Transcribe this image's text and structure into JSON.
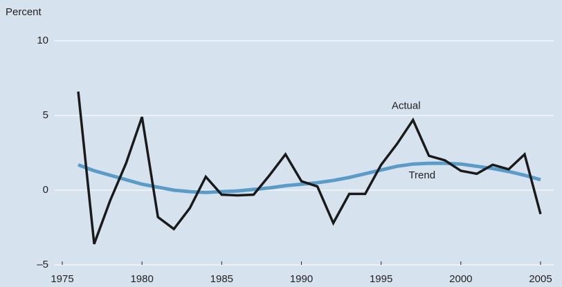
{
  "chart_data": {
    "type": "line",
    "y_label": "Percent",
    "x": [
      1976,
      1977,
      1978,
      1979,
      1980,
      1981,
      1982,
      1983,
      1984,
      1985,
      1986,
      1987,
      1988,
      1989,
      1990,
      1991,
      1992,
      1993,
      1994,
      1995,
      1996,
      1997,
      1998,
      1999,
      2000,
      2001,
      2002,
      2003,
      2004,
      2005
    ],
    "series": [
      {
        "name": "Actual",
        "color": "#1a1a1a",
        "values": [
          6.6,
          -3.6,
          -0.7,
          1.8,
          4.9,
          -1.8,
          -2.6,
          -1.2,
          0.9,
          -0.3,
          -0.35,
          -0.3,
          1.0,
          2.4,
          0.6,
          0.25,
          -2.2,
          -0.25,
          -0.25,
          1.7,
          3.1,
          4.7,
          2.3,
          2.0,
          1.3,
          1.1,
          1.7,
          1.4,
          2.4,
          -1.6
        ]
      },
      {
        "name": "Trend",
        "color": "#5b9bc8",
        "values": [
          1.7,
          1.3,
          1.0,
          0.7,
          0.4,
          0.2,
          0.0,
          -0.1,
          -0.15,
          -0.1,
          -0.05,
          0.05,
          0.15,
          0.3,
          0.4,
          0.5,
          0.65,
          0.85,
          1.1,
          1.35,
          1.6,
          1.75,
          1.8,
          1.8,
          1.75,
          1.6,
          1.45,
          1.25,
          1.0,
          0.7
        ]
      }
    ],
    "xlim": [
      1975,
      2005
    ],
    "xticks": [
      1975,
      1980,
      1985,
      1990,
      1995,
      2000,
      2005
    ],
    "ylim": [
      -5,
      10
    ],
    "yticks": [
      {
        "value": -5,
        "label": "–5"
      },
      0,
      5,
      10
    ],
    "grid": true
  }
}
